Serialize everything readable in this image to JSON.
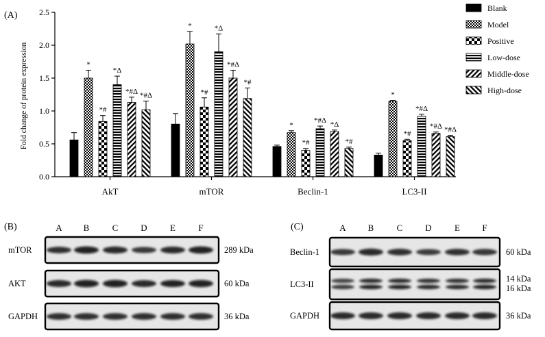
{
  "panel_a_label": "(A)",
  "panel_b_label": "(B)",
  "panel_c_label": "(C)",
  "chart_data": {
    "type": "bar",
    "ylabel": "Fold change of protein expression",
    "ylim": [
      0,
      2.5
    ],
    "yticks": [
      "0.0",
      "0.5",
      "1.0",
      "1.5",
      "2.0",
      "2.5"
    ],
    "categories": [
      "AkT",
      "mTOR",
      "Beclin-1",
      "LC3-II"
    ],
    "legend_position": "right",
    "series": [
      {
        "name": "Blank",
        "pattern": "solid",
        "values": [
          0.56,
          0.8,
          0.46,
          0.33
        ],
        "errors": [
          0.11,
          0.16,
          0.02,
          0.03
        ],
        "annotations": [
          "",
          "",
          "",
          ""
        ]
      },
      {
        "name": "Model",
        "pattern": "checker-fine",
        "values": [
          1.5,
          2.02,
          0.67,
          1.15
        ],
        "errors": [
          0.12,
          0.19,
          0.03,
          0.01
        ],
        "annotations": [
          "*",
          "*",
          "*",
          "*"
        ]
      },
      {
        "name": "Positive",
        "pattern": "checker",
        "values": [
          0.84,
          1.06,
          0.4,
          0.55
        ],
        "errors": [
          0.09,
          0.14,
          0.03,
          0.02
        ],
        "annotations": [
          "*#",
          "*#",
          "*#",
          "*#"
        ]
      },
      {
        "name": "Low-dose",
        "pattern": "horizontal",
        "values": [
          1.4,
          1.9,
          0.73,
          0.92
        ],
        "errors": [
          0.13,
          0.27,
          0.04,
          0.03
        ],
        "annotations": [
          "*Δ",
          "*Δ",
          "*#Δ",
          "*#Δ"
        ]
      },
      {
        "name": "Middle-dose",
        "pattern": "diag-right",
        "values": [
          1.13,
          1.5,
          0.69,
          0.66
        ],
        "errors": [
          0.08,
          0.12,
          0.02,
          0.02
        ],
        "annotations": [
          "*#Δ",
          "*#Δ",
          "*Δ",
          "*#Δ"
        ]
      },
      {
        "name": "High-dose",
        "pattern": "diag-left",
        "values": [
          1.02,
          1.19,
          0.43,
          0.61
        ],
        "errors": [
          0.13,
          0.16,
          0.02,
          0.02
        ],
        "annotations": [
          "*#Δ",
          "*#",
          "*#",
          "*#Δ"
        ]
      }
    ]
  },
  "blot_b": {
    "lanes": [
      "A",
      "B",
      "C",
      "D",
      "E",
      "F"
    ],
    "rows": [
      {
        "label": "mTOR",
        "size": "289 kDa",
        "intensity": [
          0.7,
          0.95,
          0.85,
          0.6,
          0.8,
          0.95
        ]
      },
      {
        "label": "AKT",
        "size": "60  kDa",
        "intensity": [
          0.85,
          1.0,
          1.0,
          0.8,
          0.9,
          0.95
        ]
      },
      {
        "label": "GAPDH",
        "size": "36  kDa",
        "intensity": [
          0.75,
          0.75,
          0.75,
          0.75,
          0.75,
          0.75
        ]
      }
    ]
  },
  "blot_c": {
    "lanes": [
      "A",
      "B",
      "C",
      "D",
      "E",
      "F"
    ],
    "rows": [
      {
        "label": "Beclin-1",
        "size": "60  kDa",
        "intensity": [
          0.6,
          0.85,
          0.75,
          0.55,
          0.7,
          0.65
        ]
      },
      {
        "label": "LC3-II",
        "size": "14  kDa",
        "size2": "16  kDa",
        "intensity": [
          0.55,
          0.95,
          0.9,
          0.8,
          0.85,
          0.9
        ]
      },
      {
        "label": "GAPDH",
        "size": "36  kDa",
        "intensity": [
          0.8,
          0.8,
          0.8,
          0.8,
          0.8,
          0.8
        ]
      }
    ]
  }
}
